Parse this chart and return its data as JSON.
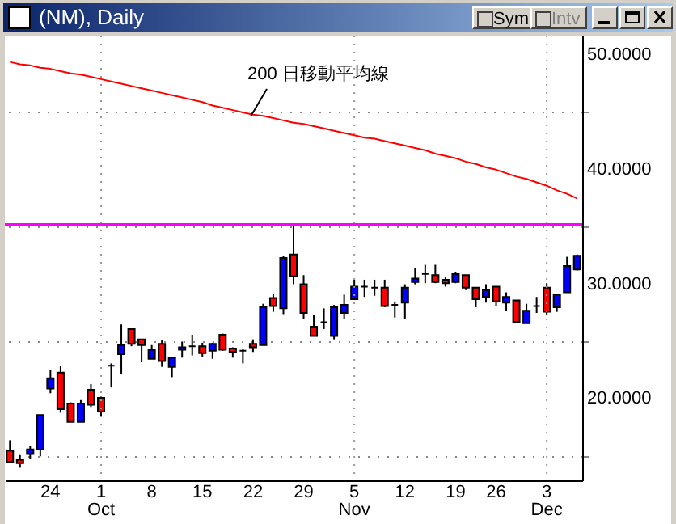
{
  "chart_data": {
    "type": "candlestick",
    "title": "(NM), Daily",
    "categories": [
      null,
      null,
      null,
      null,
      "24",
      null,
      null,
      null,
      null,
      "1 Oct",
      null,
      null,
      null,
      null,
      "8",
      null,
      null,
      null,
      null,
      "15",
      null,
      null,
      null,
      null,
      "22",
      null,
      null,
      null,
      null,
      "29",
      null,
      null,
      null,
      null,
      "5 Nov",
      null,
      null,
      null,
      null,
      "12",
      null,
      null,
      null,
      null,
      "19",
      null,
      null,
      null,
      "26",
      null,
      null,
      null,
      null,
      "3 Dec",
      null,
      null,
      null
    ],
    "ohlc": [
      [
        15.5,
        16.4,
        14.4,
        14.5
      ],
      [
        14.7,
        15.1,
        14.0,
        14.4
      ],
      [
        15.2,
        15.9,
        14.8,
        15.6
      ],
      [
        15.6,
        18.6,
        15.0,
        18.6
      ],
      [
        20.9,
        22.5,
        20.5,
        21.8
      ],
      [
        22.3,
        22.9,
        18.8,
        19.1
      ],
      [
        19.6,
        19.7,
        18.0,
        18.0
      ],
      [
        18.0,
        19.9,
        18.0,
        19.6
      ],
      [
        20.8,
        21.3,
        19.3,
        19.5
      ],
      [
        20.1,
        20.2,
        18.4,
        18.9
      ],
      [
        22.9,
        23.1,
        21.0,
        22.9
      ],
      [
        23.9,
        26.5,
        22.2,
        24.7
      ],
      [
        26.1,
        26.1,
        24.6,
        24.8
      ],
      [
        25.2,
        25.2,
        23.2,
        24.7
      ],
      [
        23.5,
        24.7,
        23.5,
        24.3
      ],
      [
        24.8,
        25.1,
        22.8,
        23.3
      ],
      [
        22.8,
        23.6,
        21.9,
        23.6
      ],
      [
        24.3,
        25.0,
        23.6,
        24.5
      ],
      [
        24.6,
        25.6,
        23.8,
        24.6
      ],
      [
        24.6,
        24.9,
        23.7,
        24.0
      ],
      [
        24.2,
        24.9,
        23.5,
        24.8
      ],
      [
        25.6,
        25.7,
        24.2,
        24.3
      ],
      [
        24.4,
        24.5,
        23.6,
        24.1
      ],
      [
        24.2,
        24.4,
        23.1,
        24.2
      ],
      [
        24.8,
        25.2,
        24.1,
        24.5
      ],
      [
        24.7,
        28.3,
        24.7,
        28.0
      ],
      [
        28.8,
        29.2,
        27.6,
        28.1
      ],
      [
        27.9,
        32.5,
        27.4,
        32.3
      ],
      [
        32.6,
        35.2,
        30.0,
        30.7
      ],
      [
        30.0,
        30.8,
        27.0,
        27.5
      ],
      [
        26.3,
        27.3,
        25.5,
        25.5
      ],
      [
        26.7,
        27.9,
        26.1,
        26.7
      ],
      [
        25.5,
        28.2,
        25.2,
        28.0
      ],
      [
        27.5,
        29.1,
        27.0,
        28.2
      ],
      [
        28.7,
        30.4,
        28.7,
        29.8
      ],
      [
        29.8,
        30.4,
        28.9,
        29.8
      ],
      [
        29.7,
        30.4,
        29.0,
        29.7
      ],
      [
        29.7,
        30.4,
        28.0,
        28.1
      ],
      [
        28.2,
        28.5,
        27.1,
        28.2
      ],
      [
        28.4,
        30.0,
        27.0,
        29.7
      ],
      [
        30.2,
        31.4,
        30.0,
        30.5
      ],
      [
        30.9,
        31.7,
        30.1,
        30.9
      ],
      [
        30.8,
        31.7,
        30.1,
        30.2
      ],
      [
        30.4,
        30.6,
        29.8,
        30.1
      ],
      [
        30.2,
        31.1,
        30.1,
        30.9
      ],
      [
        30.8,
        30.8,
        29.5,
        29.7
      ],
      [
        29.7,
        29.7,
        28.0,
        28.7
      ],
      [
        28.9,
        30.0,
        28.4,
        29.5
      ],
      [
        29.8,
        29.8,
        28.1,
        28.5
      ],
      [
        28.4,
        29.3,
        27.7,
        28.9
      ],
      [
        28.6,
        28.6,
        26.7,
        26.7
      ],
      [
        26.6,
        28.3,
        26.6,
        27.7
      ],
      [
        28.1,
        28.9,
        27.5,
        28.1
      ],
      [
        29.7,
        30.1,
        27.3,
        27.6
      ],
      [
        28.0,
        29.1,
        27.6,
        29.1
      ],
      [
        29.3,
        32.4,
        29.3,
        31.6
      ],
      [
        31.3,
        32.6,
        31.2,
        32.5
      ]
    ],
    "colors": [
      "#ff0000",
      "#ff0000",
      "#0000ff",
      "#0000ff",
      "#0000ff",
      "#ff0000",
      "#ff0000",
      "#0000ff",
      "#ff0000",
      "#ff0000",
      "#000000",
      "#0000ff",
      "#ff0000",
      "#ff0000",
      "#0000ff",
      "#ff0000",
      "#0000ff",
      "#0000ff",
      "#000000",
      "#ff0000",
      "#0000ff",
      "#ff0000",
      "#ff0000",
      "#000000",
      "#ff0000",
      "#0000ff",
      "#ff0000",
      "#0000ff",
      "#ff0000",
      "#ff0000",
      "#ff0000",
      "#000000",
      "#0000ff",
      "#0000ff",
      "#0000ff",
      "#000000",
      "#000000",
      "#ff0000",
      "#000000",
      "#0000ff",
      "#0000ff",
      "#000000",
      "#ff0000",
      "#ff0000",
      "#0000ff",
      "#ff0000",
      "#ff0000",
      "#0000ff",
      "#ff0000",
      "#0000ff",
      "#ff0000",
      "#0000ff",
      "#000000",
      "#ff0000",
      "#0000ff",
      "#0000ff",
      "#0000ff"
    ],
    "series": [
      {
        "type": "line",
        "name": "200 日移動平均線",
        "color": "#ff0000",
        "values": [
          49.4,
          49.2,
          49.1,
          48.9,
          48.8,
          48.6,
          48.4,
          48.3,
          48.1,
          47.9,
          47.7,
          47.5,
          47.3,
          47.1,
          46.9,
          46.7,
          46.5,
          46.3,
          46.1,
          45.9,
          45.6,
          45.4,
          45.2,
          45.0,
          44.8,
          44.7,
          44.5,
          44.3,
          44.1,
          44.0,
          43.8,
          43.6,
          43.4,
          43.2,
          43.0,
          42.8,
          42.7,
          42.5,
          42.3,
          42.1,
          41.9,
          41.7,
          41.4,
          41.2,
          41.0,
          40.7,
          40.5,
          40.2,
          40.0,
          39.7,
          39.4,
          39.2,
          38.9,
          38.6,
          38.2,
          37.9,
          37.5
        ]
      }
    ],
    "ylim": [
      12.9,
      51.7
    ],
    "yticks": [
      {
        "value": 15,
        "label": null
      },
      {
        "value": 20,
        "label": "20.0000"
      },
      {
        "value": 25,
        "label": null
      },
      {
        "value": 30,
        "label": "30.0000"
      },
      {
        "value": 35,
        "label": null
      },
      {
        "value": 40,
        "label": "40.0000"
      },
      {
        "value": 45,
        "label": null
      },
      {
        "value": 50,
        "label": "50.0000"
      }
    ],
    "grid": "y",
    "ref_lines": [
      {
        "axis": "y",
        "value": 35.2,
        "color": "#ff00ff",
        "line_style": "solid"
      }
    ],
    "annotations": [
      "Sym",
      "Intv"
    ]
  }
}
